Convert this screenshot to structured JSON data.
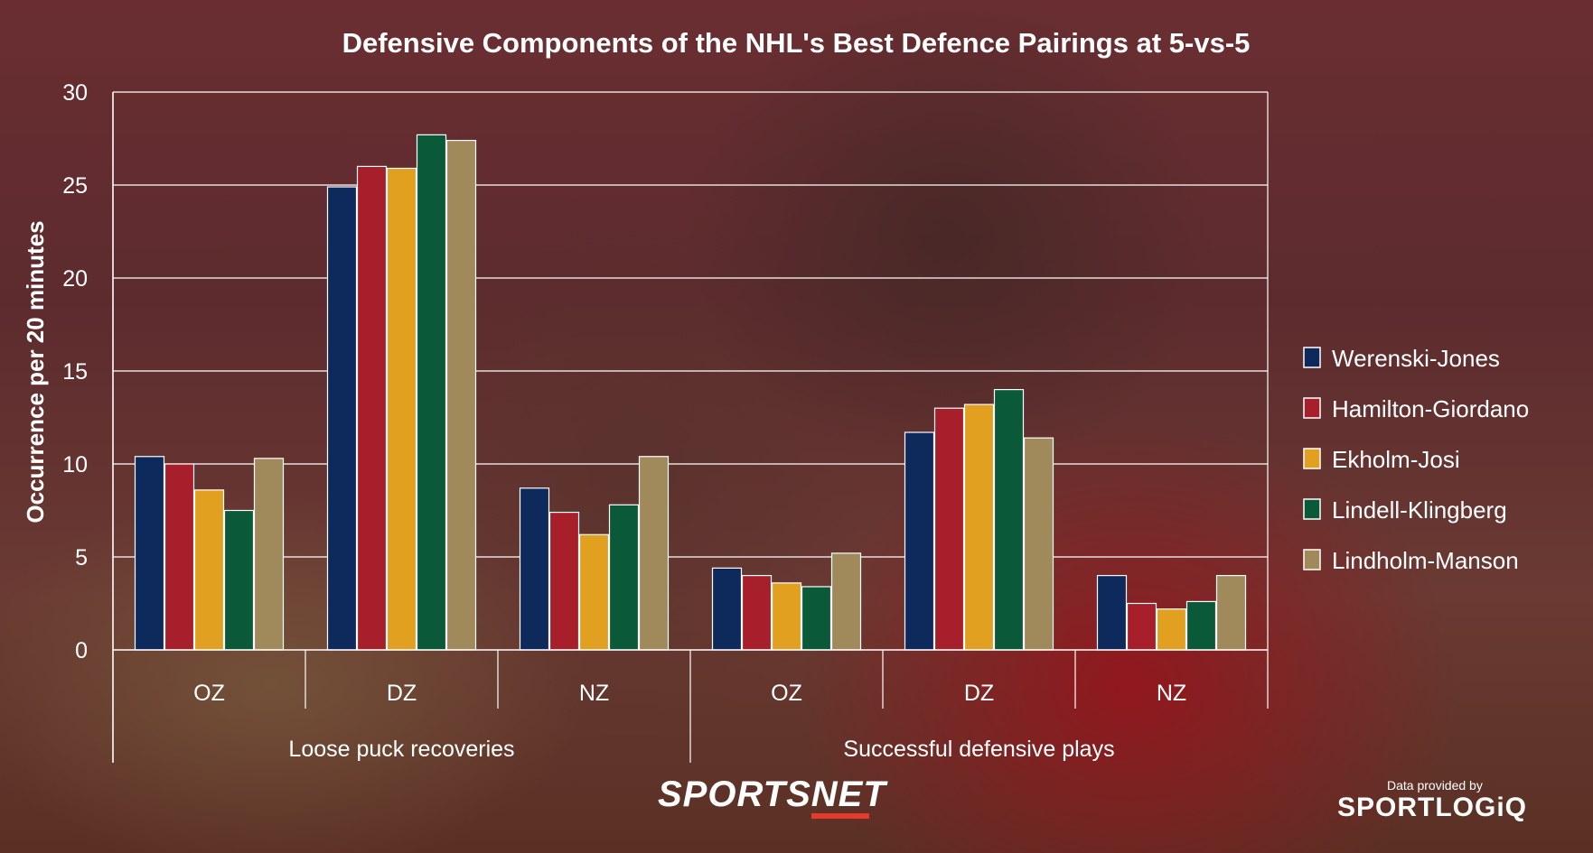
{
  "chart_data": {
    "type": "bar",
    "title": "Defensive Components of the NHL's Best Defence Pairings at 5-vs-5",
    "ylabel": "Occurrence per 20 minutes",
    "xlabel": "",
    "ylim": [
      0,
      30
    ],
    "yticks": [
      0,
      5,
      10,
      15,
      20,
      25,
      30
    ],
    "grid": true,
    "legend_position": "right",
    "groups": [
      {
        "label": "Loose puck recoveries",
        "categories": [
          "OZ",
          "DZ",
          "NZ"
        ]
      },
      {
        "label": "Successful defensive plays",
        "categories": [
          "OZ",
          "DZ",
          "NZ"
        ]
      }
    ],
    "categories": [
      "OZ",
      "DZ",
      "NZ",
      "OZ",
      "DZ",
      "NZ"
    ],
    "series": [
      {
        "name": "Werenski-Jones",
        "color": "#0e2a5c",
        "values": [
          10.4,
          24.9,
          8.7,
          4.4,
          11.7,
          4.0
        ]
      },
      {
        "name": "Hamilton-Giordano",
        "color": "#a81f2c",
        "values": [
          10.0,
          26.0,
          7.4,
          4.0,
          13.0,
          2.5
        ]
      },
      {
        "name": "Ekholm-Josi",
        "color": "#e2a020",
        "values": [
          8.6,
          25.9,
          6.2,
          3.6,
          13.2,
          2.2
        ]
      },
      {
        "name": "Lindell-Klingberg",
        "color": "#0a5a3a",
        "values": [
          7.5,
          27.7,
          7.8,
          3.4,
          14.0,
          2.6
        ]
      },
      {
        "name": "Lindholm-Manson",
        "color": "#a08a5c",
        "values": [
          10.3,
          27.4,
          10.4,
          5.2,
          11.4,
          4.0
        ]
      }
    ]
  },
  "branding": {
    "sportsnet": "SPORTSNET",
    "data_provided_by": "Data provided by",
    "sportlogiq": "SPORTLOGiQ"
  }
}
